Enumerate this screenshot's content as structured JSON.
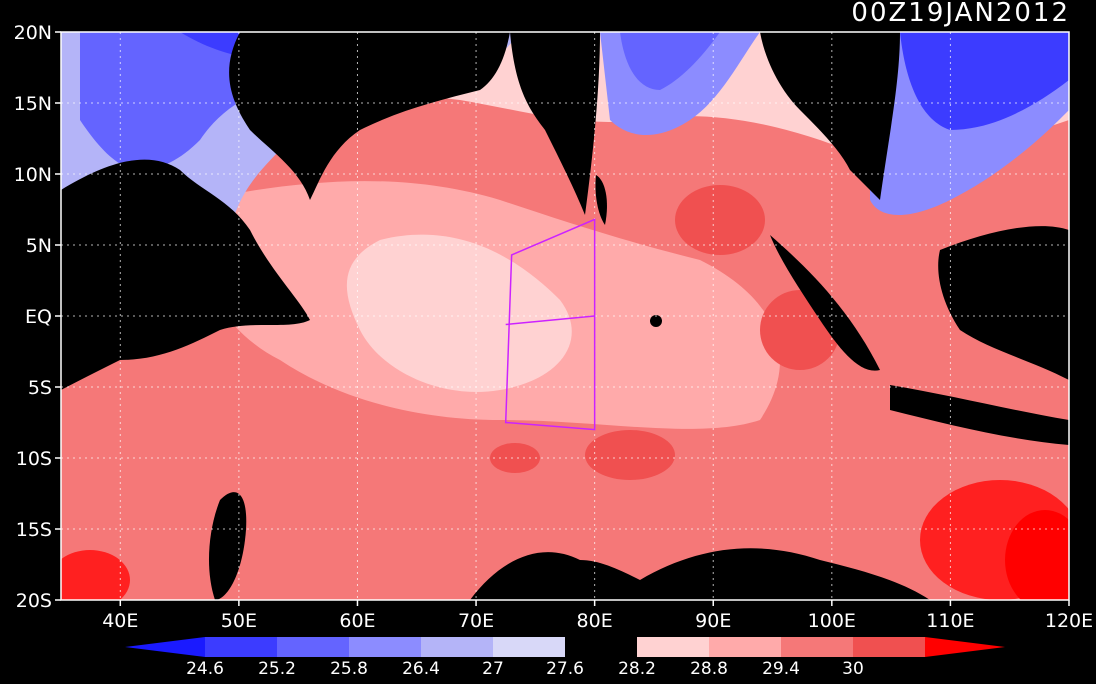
{
  "title": "00Z19JAN2012",
  "colors": {
    "background": "#000000",
    "land": "#000000",
    "grid": "#ffffff",
    "box": "#cc22ff",
    "levels": [
      "#1a1aff",
      "#3c3cff",
      "#6464ff",
      "#8c8cff",
      "#b4b4f8",
      "#d8d8f8",
      "#000000",
      "#ffd2d2",
      "#ffaaaa",
      "#f57878",
      "#f05050",
      "#ff2020",
      "#ff0000"
    ]
  },
  "map": {
    "lon_range": [
      35,
      120
    ],
    "lat_range": [
      -20,
      20
    ],
    "lon_labels": [
      "40E",
      "50E",
      "60E",
      "70E",
      "80E",
      "90E",
      "100E",
      "110E",
      "120E"
    ],
    "lat_labels": [
      "20N",
      "15N",
      "10N",
      "5N",
      "EQ",
      "5S",
      "10S",
      "15S",
      "20S"
    ],
    "box_outline_lonlat": [
      [
        73,
        4.3
      ],
      [
        80,
        6.8
      ],
      [
        80,
        -8
      ],
      [
        72.5,
        -7.5
      ]
    ],
    "box_divider_lonlat": [
      [
        72.5,
        -0.6
      ],
      [
        80,
        0
      ]
    ]
  },
  "colorbar": {
    "values": [
      "24.6",
      "25.2",
      "25.8",
      "26.4",
      "27",
      "27.6",
      "28.2",
      "28.8",
      "29.4",
      "30"
    ]
  }
}
